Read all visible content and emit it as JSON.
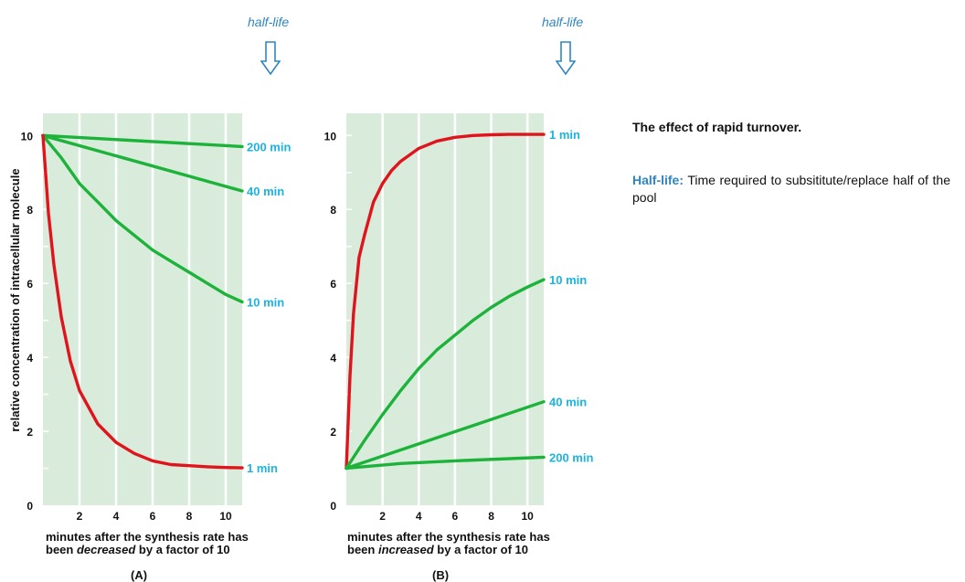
{
  "annotations": {
    "half_life_a": "half-life",
    "half_life_b": "half-life"
  },
  "side_text": {
    "title": "The effect of rapid turnover.",
    "term": "Half-life:",
    "definition": " Time required to subsititute/replace half of the pool"
  },
  "colors": {
    "background_fill": "#d9ecdc",
    "grid": "#ffffff",
    "green": "#1db33a",
    "red": "#e0141c",
    "label_blue": "#1bb4e0",
    "accent": "#2e86c1"
  },
  "chart_data": [
    {
      "type": "line",
      "panel_label": "(A)",
      "ylabel": "relative concentration of intracellular molecule",
      "xlabel_parts": [
        "minutes after the synthesis rate has",
        "been ",
        "decreased",
        " by a factor of 10"
      ],
      "xticks": [
        "2",
        "4",
        "6",
        "8",
        "10"
      ],
      "yticks": [
        "0",
        "2",
        "4",
        "6",
        "8",
        "10"
      ],
      "xlim": [
        0,
        10.9
      ],
      "ylim": [
        0,
        10.6
      ],
      "grid": true,
      "series": [
        {
          "name": "200 min",
          "color": "green",
          "x": [
            0,
            10.9
          ],
          "y": [
            10,
            9.7
          ]
        },
        {
          "name": "40 min",
          "color": "green",
          "x": [
            0,
            10.9
          ],
          "y": [
            10,
            8.5
          ]
        },
        {
          "name": "10 min",
          "color": "green",
          "x": [
            0,
            1,
            2,
            3,
            4,
            5,
            6,
            7,
            8,
            9,
            10,
            10.9
          ],
          "y": [
            10,
            9.4,
            8.7,
            8.2,
            7.7,
            7.3,
            6.9,
            6.6,
            6.3,
            6.0,
            5.7,
            5.5
          ]
        },
        {
          "name": "1 min",
          "color": "red",
          "x": [
            0,
            0.3,
            0.6,
            1,
            1.5,
            2,
            3,
            4,
            5,
            6,
            7,
            8,
            9,
            10,
            10.9
          ],
          "y": [
            10,
            7.9,
            6.5,
            5.1,
            3.9,
            3.1,
            2.2,
            1.7,
            1.4,
            1.2,
            1.1,
            1.07,
            1.04,
            1.02,
            1.01
          ]
        }
      ]
    },
    {
      "type": "line",
      "panel_label": "(B)",
      "ylabel": "",
      "xlabel_parts": [
        "minutes after the synthesis rate has",
        "been ",
        "increased",
        " by a factor of 10"
      ],
      "xticks": [
        "2",
        "4",
        "6",
        "8",
        "10"
      ],
      "yticks": [
        "0",
        "2",
        "4",
        "6",
        "8",
        "10"
      ],
      "xlim": [
        0,
        10.9
      ],
      "ylim": [
        0,
        10.6
      ],
      "grid": true,
      "series": [
        {
          "name": "1 min",
          "color": "red",
          "x": [
            0,
            0.2,
            0.4,
            0.7,
            1,
            1.5,
            2,
            2.5,
            3,
            4,
            5,
            6,
            7,
            8,
            9,
            10,
            10.9
          ],
          "y": [
            1,
            3.5,
            5.2,
            6.7,
            7.3,
            8.2,
            8.7,
            9.05,
            9.3,
            9.65,
            9.85,
            9.95,
            10.0,
            10.02,
            10.03,
            10.03,
            10.03
          ]
        },
        {
          "name": "10 min",
          "color": "green",
          "x": [
            0,
            1,
            2,
            3,
            4,
            5,
            6,
            7,
            8,
            9,
            10,
            10.9
          ],
          "y": [
            1,
            1.75,
            2.45,
            3.1,
            3.7,
            4.2,
            4.6,
            5.0,
            5.35,
            5.65,
            5.9,
            6.1
          ]
        },
        {
          "name": "40 min",
          "color": "green",
          "x": [
            0,
            10.9
          ],
          "y": [
            1,
            2.8
          ]
        },
        {
          "name": "200 min",
          "color": "green",
          "x": [
            0,
            3,
            6,
            9,
            10.9
          ],
          "y": [
            1,
            1.13,
            1.2,
            1.26,
            1.3
          ]
        }
      ]
    }
  ]
}
